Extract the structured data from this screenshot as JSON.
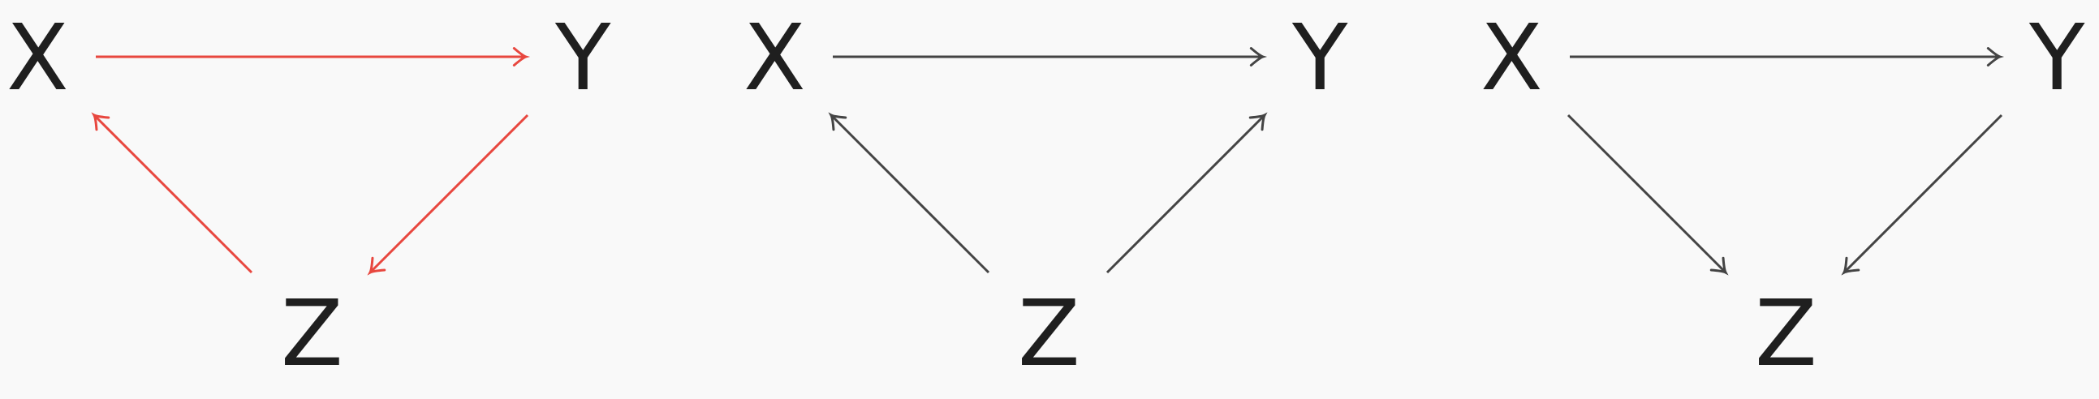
{
  "colors": {
    "background": "#f9f9f9",
    "node_text": "#1f1f1f",
    "highlight_edge": "#e8473f",
    "default_edge": "#444444"
  },
  "diagrams": [
    {
      "nodes": {
        "x": "X",
        "y": "Y",
        "z": "Z"
      },
      "edges": [
        {
          "from": "X",
          "to": "Y",
          "highlighted": true
        },
        {
          "from": "Y",
          "to": "Z",
          "highlighted": true
        },
        {
          "from": "Z",
          "to": "X",
          "highlighted": true
        }
      ]
    },
    {
      "nodes": {
        "x": "X",
        "y": "Y",
        "z": "Z"
      },
      "edges": [
        {
          "from": "X",
          "to": "Y",
          "highlighted": false
        },
        {
          "from": "Z",
          "to": "X",
          "highlighted": false
        },
        {
          "from": "Z",
          "to": "Y",
          "highlighted": false
        }
      ]
    },
    {
      "nodes": {
        "x": "X",
        "y": "Y",
        "z": "Z"
      },
      "edges": [
        {
          "from": "X",
          "to": "Y",
          "highlighted": false
        },
        {
          "from": "X",
          "to": "Z",
          "highlighted": false
        },
        {
          "from": "Y",
          "to": "Z",
          "highlighted": false
        }
      ]
    }
  ]
}
